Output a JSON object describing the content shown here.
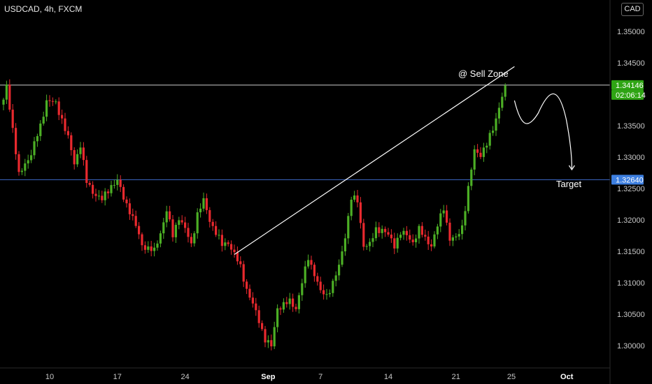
{
  "symbol_title": "USDCAD, 4h, FXCM",
  "currency_button": "CAD",
  "colors": {
    "up": "#4caf25",
    "down": "#e8292e",
    "resistance": "#cccccc",
    "target_line": "#3d6ac8",
    "tag_green": "#2fa514",
    "tag_blue": "#3d7fe0"
  },
  "chart_data": {
    "type": "candlestick",
    "title": "USDCAD, 4h, FXCM",
    "ylim": [
      1.2955,
      1.3535
    ],
    "y_ticks": [
      "1.35000",
      "1.34500",
      "1.34146",
      "1.33500",
      "1.33000",
      "1.32640",
      "1.32500",
      "1.32000",
      "1.31500",
      "1.31000",
      "1.30500",
      "1.30000"
    ],
    "x_ticks": [
      {
        "label": "10",
        "index": 15
      },
      {
        "label": "17",
        "index": 37
      },
      {
        "label": "24",
        "index": 59
      },
      {
        "label": "Sep",
        "index": 86
      },
      {
        "label": "7",
        "index": 103
      },
      {
        "label": "14",
        "index": 125
      },
      {
        "label": "21",
        "index": 147
      },
      {
        "label": "25",
        "index": 165
      },
      {
        "label": "Oct",
        "index": 183
      }
    ],
    "anchors": [
      [
        0,
        1.3388
      ],
      [
        1,
        1.3415
      ],
      [
        3,
        1.3345
      ],
      [
        5,
        1.327
      ],
      [
        7,
        1.329
      ],
      [
        9,
        1.3305
      ],
      [
        12,
        1.335
      ],
      [
        14,
        1.339
      ],
      [
        17,
        1.3385
      ],
      [
        19,
        1.336
      ],
      [
        21,
        1.333
      ],
      [
        23,
        1.329
      ],
      [
        25,
        1.332
      ],
      [
        27,
        1.326
      ],
      [
        29,
        1.3245
      ],
      [
        32,
        1.3232
      ],
      [
        35,
        1.3255
      ],
      [
        37,
        1.3262
      ],
      [
        39,
        1.3235
      ],
      [
        41,
        1.3215
      ],
      [
        43,
        1.319
      ],
      [
        45,
        1.316
      ],
      [
        47,
        1.3155
      ],
      [
        49,
        1.315
      ],
      [
        51,
        1.318
      ],
      [
        53,
        1.3215
      ],
      [
        55,
        1.3175
      ],
      [
        57,
        1.3205
      ],
      [
        59,
        1.3185
      ],
      [
        61,
        1.316
      ],
      [
        63,
        1.321
      ],
      [
        65,
        1.323
      ],
      [
        67,
        1.32
      ],
      [
        69,
        1.318
      ],
      [
        71,
        1.316
      ],
      [
        73,
        1.3165
      ],
      [
        75,
        1.3145
      ],
      [
        77,
        1.3125
      ],
      [
        79,
        1.309
      ],
      [
        81,
        1.3065
      ],
      [
        83,
        1.304
      ],
      [
        85,
        1.301
      ],
      [
        87,
        1.2998
      ],
      [
        89,
        1.306
      ],
      [
        91,
        1.3065
      ],
      [
        93,
        1.307
      ],
      [
        95,
        1.306
      ],
      [
        97,
        1.31
      ],
      [
        99,
        1.314
      ],
      [
        101,
        1.3115
      ],
      [
        103,
        1.3085
      ],
      [
        105,
        1.308
      ],
      [
        107,
        1.31
      ],
      [
        109,
        1.3125
      ],
      [
        111,
        1.3175
      ],
      [
        113,
        1.3235
      ],
      [
        115,
        1.323
      ],
      [
        117,
        1.316
      ],
      [
        119,
        1.316
      ],
      [
        121,
        1.3185
      ],
      [
        123,
        1.3185
      ],
      [
        125,
        1.3175
      ],
      [
        127,
        1.316
      ],
      [
        129,
        1.318
      ],
      [
        131,
        1.3175
      ],
      [
        133,
        1.3165
      ],
      [
        135,
        1.3185
      ],
      [
        137,
        1.317
      ],
      [
        139,
        1.316
      ],
      [
        141,
        1.319
      ],
      [
        143,
        1.322
      ],
      [
        145,
        1.317
      ],
      [
        147,
        1.317
      ],
      [
        149,
        1.319
      ],
      [
        151,
        1.325
      ],
      [
        153,
        1.331
      ],
      [
        155,
        1.3305
      ],
      [
        157,
        1.332
      ],
      [
        159,
        1.3345
      ],
      [
        161,
        1.338
      ],
      [
        163,
        1.3414
      ]
    ],
    "annotations": {
      "sell_zone_label": "@ Sell Zone",
      "target_label": "Target",
      "resistance_level": 1.34146,
      "target_level": 1.3264,
      "trendline_from": [
        75,
        1.3145
      ],
      "trendline_to": [
        166,
        1.3444
      ]
    },
    "price_tags": {
      "last_price": "1.34146",
      "countdown": "02:06:14",
      "target_price": "1.32640"
    }
  }
}
